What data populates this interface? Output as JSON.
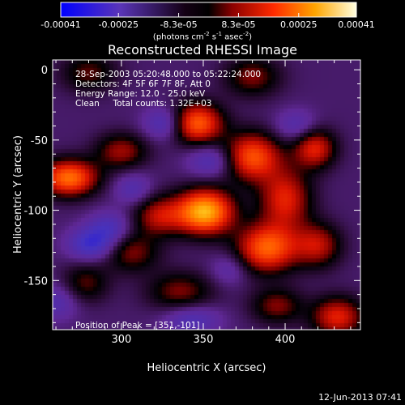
{
  "colorbar": {
    "ticks": [
      "-0.00041",
      "-0.00025",
      "-8.3e-05",
      "8.3e-05",
      "0.00025",
      "0.00041"
    ],
    "tick_values": [
      -0.00041,
      -0.00025,
      -8.3e-05,
      8.3e-05,
      0.00025,
      0.00041
    ],
    "units_prefix": "(photons cm",
    "units_exp1": "-2",
    "units_mid": " s",
    "units_exp2": "-1",
    "units_mid2": " asec",
    "units_exp3": "-2",
    "units_suffix": ")",
    "colors": [
      "#0000ff",
      "#6a2fb0",
      "#000000",
      "#c00000",
      "#ff6a00",
      "#ffff90"
    ]
  },
  "chart_data": {
    "type": "heatmap",
    "title": "Reconstructed RHESSI Image",
    "xlabel": "Heliocentric X (arcsec)",
    "ylabel": "Heliocentric Y (arcsec)",
    "xlim": [
      258,
      446
    ],
    "ylim": [
      -185,
      7
    ],
    "xticks": [
      300,
      350,
      400
    ],
    "yticks": [
      0,
      -50,
      -100,
      -150
    ],
    "peak": [
      351,
      -101
    ],
    "sources": [
      {
        "x": 351,
        "y": -101,
        "amp": 1.0,
        "sx": 12,
        "sy": 11
      },
      {
        "x": 268,
        "y": -77,
        "amp": 0.8,
        "sx": 12,
        "sy": 9
      },
      {
        "x": 346,
        "y": -38,
        "amp": 0.75,
        "sx": 11,
        "sy": 10
      },
      {
        "x": 380,
        "y": -62,
        "amp": 0.7,
        "sx": 12,
        "sy": 12
      },
      {
        "x": 389,
        "y": -127,
        "amp": 0.75,
        "sx": 13,
        "sy": 12
      },
      {
        "x": 400,
        "y": -92,
        "amp": 0.55,
        "sx": 11,
        "sy": 15
      },
      {
        "x": 418,
        "y": -56,
        "amp": 0.55,
        "sx": 9,
        "sy": 10
      },
      {
        "x": 420,
        "y": -125,
        "amp": 0.45,
        "sx": 10,
        "sy": 11
      },
      {
        "x": 432,
        "y": -176,
        "amp": 0.55,
        "sx": 11,
        "sy": 10
      },
      {
        "x": 300,
        "y": -58,
        "amp": 0.4,
        "sx": 11,
        "sy": 9
      },
      {
        "x": 323,
        "y": -104,
        "amp": 0.45,
        "sx": 11,
        "sy": 10
      },
      {
        "x": 306,
        "y": -130,
        "amp": 0.35,
        "sx": 12,
        "sy": 10
      },
      {
        "x": 336,
        "y": -158,
        "amp": 0.35,
        "sx": 14,
        "sy": 10
      },
      {
        "x": 278,
        "y": -152,
        "amp": 0.3,
        "sx": 10,
        "sy": 10
      },
      {
        "x": 280,
        "y": -2,
        "amp": 0.3,
        "sx": 12,
        "sy": 10
      },
      {
        "x": 380,
        "y": -5,
        "amp": 0.35,
        "sx": 12,
        "sy": 10
      },
      {
        "x": 395,
        "y": -168,
        "amp": 0.35,
        "sx": 11,
        "sy": 9
      },
      {
        "x": 327,
        "y": -38,
        "amp": -0.35,
        "sx": 9,
        "sy": 8
      },
      {
        "x": 282,
        "y": -124,
        "amp": -0.45,
        "sx": 10,
        "sy": 8
      },
      {
        "x": 293,
        "y": -112,
        "amp": -0.3,
        "sx": 9,
        "sy": 8
      },
      {
        "x": 355,
        "y": -65,
        "amp": -0.3,
        "sx": 10,
        "sy": 8
      },
      {
        "x": 343,
        "y": -178,
        "amp": -0.3,
        "sx": 12,
        "sy": 8
      },
      {
        "x": 407,
        "y": -40,
        "amp": -0.25,
        "sx": 9,
        "sy": 8
      },
      {
        "x": 307,
        "y": -85,
        "amp": -0.25,
        "sx": 8,
        "sy": 8
      },
      {
        "x": 260,
        "y": -165,
        "amp": -0.25,
        "sx": 10,
        "sy": 9
      },
      {
        "x": 366,
        "y": -142,
        "amp": -0.2,
        "sx": 8,
        "sy": 8
      }
    ]
  },
  "overlay": {
    "time": "28-Sep-2003 05:20:48.000 to 05:22:24.000",
    "detectors": "Detectors: 4F 5F 6F 7F 8F, Att 0",
    "energy": "Energy Range: 12.0 - 25.0 keV",
    "method": "Clean     Total counts: 1.32E+03",
    "peak": "Position of Peak = [351,-101]"
  },
  "footer": {
    "date": "12-Jun-2013 07:41"
  }
}
